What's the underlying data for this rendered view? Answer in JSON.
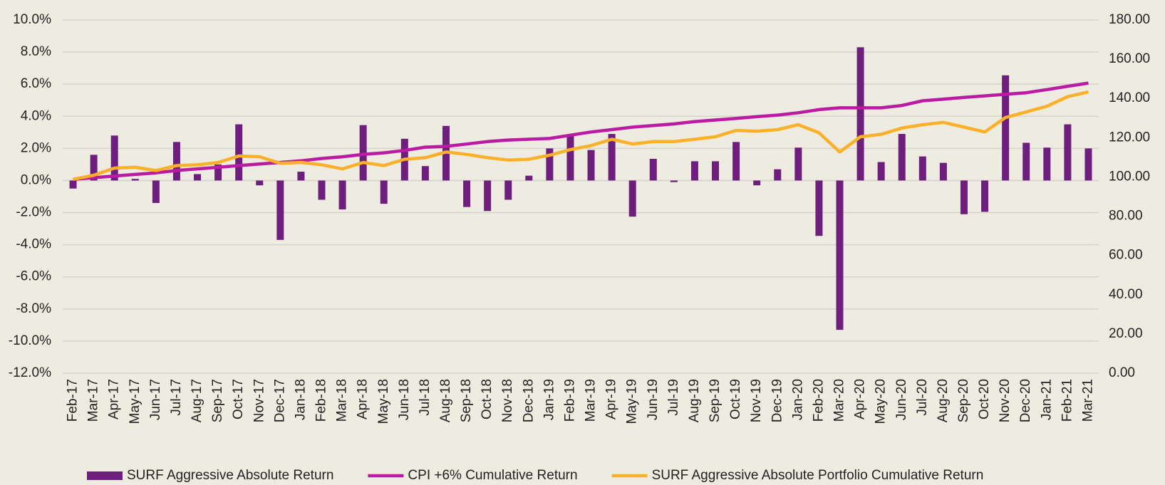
{
  "chart_data": {
    "type": "bar_line",
    "categories": [
      "Feb-17",
      "Mar-17",
      "Apr-17",
      "May-17",
      "Jun-17",
      "Jul-17",
      "Aug-17",
      "Sep-17",
      "Oct-17",
      "Nov-17",
      "Dec-17",
      "Jan-18",
      "Feb-18",
      "Mar-18",
      "Apr-18",
      "May-18",
      "Jun-18",
      "Jul-18",
      "Aug-18",
      "Sep-18",
      "Oct-18",
      "Nov-18",
      "Dec-18",
      "Jan-19",
      "Feb-19",
      "Mar-19",
      "Apr-19",
      "May-19",
      "Jun-19",
      "Jul-19",
      "Aug-19",
      "Sep-19",
      "Oct-19",
      "Nov-19",
      "Dec-19",
      "Jan-20",
      "Feb-20",
      "Mar-20",
      "Apr-20",
      "May-20",
      "Jun-20",
      "Jul-20",
      "Aug-20",
      "Sep-20",
      "Oct-20",
      "Nov-20",
      "Dec-20",
      "Jan-21",
      "Feb-21",
      "Mar-21"
    ],
    "series": [
      {
        "name": "SURF Aggressive Absolute Return",
        "type": "bar",
        "color": "#6e1f7e",
        "values": [
          -0.5,
          1.6,
          2.8,
          0.1,
          -1.4,
          2.4,
          0.4,
          1.0,
          3.5,
          -0.3,
          -3.7,
          0.55,
          -1.2,
          -1.8,
          3.45,
          -1.45,
          2.6,
          0.9,
          3.4,
          -1.65,
          -1.9,
          -1.2,
          0.3,
          2.0,
          2.8,
          1.9,
          2.9,
          -2.25,
          1.35,
          -0.1,
          1.2,
          1.2,
          2.4,
          -0.3,
          0.7,
          2.05,
          -3.45,
          -9.3,
          8.3,
          1.15,
          2.9,
          1.5,
          1.1,
          -2.1,
          -1.95,
          6.55,
          2.35,
          2.05,
          3.5,
          2.0
        ]
      },
      {
        "name": "CPI +6% Cumulative Return",
        "type": "line",
        "axis": "y2",
        "color": "#bb1aa3",
        "values": [
          98.8,
          99.6,
          100.5,
          101.3,
          102.1,
          103.3,
          104.1,
          104.9,
          105.8,
          106.6,
          107.4,
          108.2,
          109.4,
          110.3,
          111.5,
          112.3,
          113.5,
          115.2,
          115.6,
          116.8,
          118.0,
          118.8,
          119.2,
          119.6,
          121.3,
          122.9,
          124.1,
          125.4,
          126.2,
          127.0,
          128.2,
          129.0,
          129.8,
          130.7,
          131.5,
          132.7,
          134.3,
          135.2,
          135.2,
          135.2,
          136.4,
          138.8,
          139.6,
          140.5,
          141.3,
          142.1,
          142.9,
          144.5,
          146.2,
          147.8
        ]
      },
      {
        "name": "SURF Aggressive Absolute Portfolio Cumulative Return",
        "type": "line",
        "axis": "y2",
        "color": "#fbb02a",
        "values": [
          98.8,
          100.9,
          104.5,
          104.9,
          103.3,
          105.8,
          106.2,
          107.4,
          110.7,
          110.3,
          107.0,
          107.4,
          106.2,
          104.1,
          107.4,
          105.8,
          109.0,
          109.8,
          112.7,
          111.5,
          109.8,
          108.6,
          109.0,
          111.1,
          113.9,
          116.0,
          119.2,
          116.8,
          118.0,
          118.0,
          119.2,
          120.5,
          123.7,
          123.3,
          124.1,
          126.6,
          122.5,
          112.7,
          120.5,
          121.7,
          124.9,
          126.6,
          127.8,
          125.4,
          122.9,
          130.3,
          133.1,
          136.0,
          140.9,
          143.3
        ]
      }
    ],
    "ylim": [
      -12,
      10
    ],
    "yticks": [
      {
        "value": -12,
        "label": "-12.0%"
      },
      {
        "value": -10,
        "label": "-10.0%"
      },
      {
        "value": -8,
        "label": "-8.0%"
      },
      {
        "value": -6,
        "label": "-6.0%"
      },
      {
        "value": -4,
        "label": "-4.0%"
      },
      {
        "value": -2,
        "label": "-2.0%"
      },
      {
        "value": 0,
        "label": "0.0%"
      },
      {
        "value": 2,
        "label": "2.0%"
      },
      {
        "value": 4,
        "label": "4.0%"
      },
      {
        "value": 6,
        "label": "6.0%"
      },
      {
        "value": 8,
        "label": "8.0%"
      },
      {
        "value": 10,
        "label": "10.0%"
      }
    ],
    "y2lim": [
      0,
      180
    ],
    "y2ticks": [
      {
        "value": 0,
        "label": "0.00"
      },
      {
        "value": 20,
        "label": "20.00"
      },
      {
        "value": 40,
        "label": "40.00"
      },
      {
        "value": 60,
        "label": "60.00"
      },
      {
        "value": 80,
        "label": "80.00"
      },
      {
        "value": 100,
        "label": "100.00"
      },
      {
        "value": 120,
        "label": "120.00"
      },
      {
        "value": 140,
        "label": "140.00"
      },
      {
        "value": 160,
        "label": "160.00"
      },
      {
        "value": 180,
        "label": "180.00"
      }
    ],
    "grid": true,
    "legend": "bottom"
  }
}
